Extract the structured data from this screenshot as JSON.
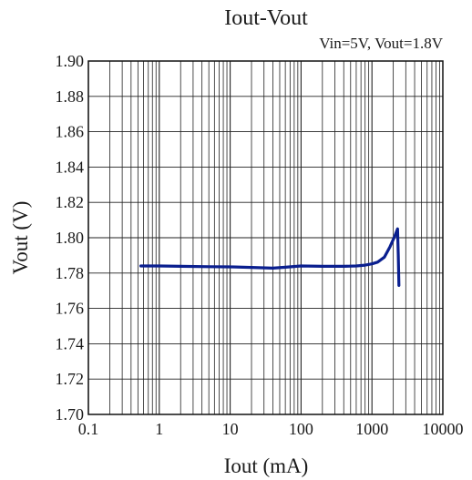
{
  "chart_data": {
    "type": "line",
    "title": "Iout-Vout",
    "subtitle": "Vin=5V, Vout=1.8V",
    "xlabel": "Iout (mA)",
    "ylabel": "Vout (V)",
    "x_scale": "log",
    "xlim": [
      0.1,
      10000
    ],
    "ylim": [
      1.7,
      1.9
    ],
    "x_ticks": [
      "0.1",
      "1",
      "10",
      "100",
      "1000",
      "10000"
    ],
    "y_ticks": [
      "1.70",
      "1.72",
      "1.74",
      "1.76",
      "1.78",
      "1.80",
      "1.82",
      "1.84",
      "1.86",
      "1.88",
      "1.90"
    ],
    "grid": true,
    "legend": "none",
    "series": [
      {
        "color": "#0a1f8f",
        "x": [
          0.55,
          1,
          2,
          5,
          10,
          20,
          40,
          60,
          100,
          200,
          400,
          600,
          800,
          1000,
          1200,
          1500,
          1800,
          2100,
          2300,
          2350,
          2400
        ],
        "y": [
          1.784,
          1.784,
          1.7838,
          1.7836,
          1.7835,
          1.7832,
          1.7828,
          1.7833,
          1.784,
          1.7838,
          1.7838,
          1.784,
          1.7845,
          1.7852,
          1.7862,
          1.789,
          1.795,
          1.801,
          1.805,
          1.79,
          1.773
        ]
      }
    ]
  }
}
